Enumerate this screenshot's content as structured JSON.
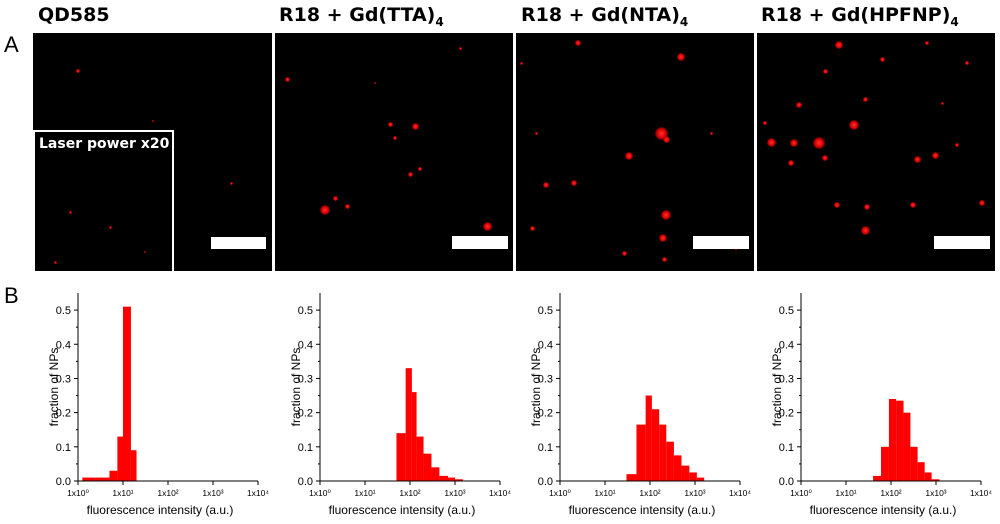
{
  "figure": {
    "panel_a_label": "A",
    "panel_b_label": "B",
    "columns": [
      {
        "title_main": "QD585",
        "title_sub": ""
      },
      {
        "title_main": "R18 + Gd(TTA)",
        "title_sub": "4"
      },
      {
        "title_main": "R18 + Gd(NTA)",
        "title_sub": "4"
      },
      {
        "title_main": "R18 + Gd(HPFNP)",
        "title_sub": "4"
      }
    ],
    "inset_label": "Laser power x20",
    "spot_color": "#ff1a1a",
    "bar_color": "#ff0000"
  },
  "chart_data": [
    {
      "type": "bar",
      "title": "",
      "xlabel": "fluorescence intensity (a.u.)",
      "ylabel": "fraction of NPs",
      "x_scale": "log",
      "xlim": [
        1,
        10000
      ],
      "ylim": [
        0,
        0.55
      ],
      "x_tick_labels": [
        "1x10⁰",
        "1x10¹",
        "1x10²",
        "1x10³",
        "1x10⁴"
      ],
      "y_tick_labels": [
        "0.0",
        "0.1",
        "0.2",
        "0.3",
        "0.4",
        "0.5"
      ],
      "bin_edges": [
        1.25,
        2.5,
        5,
        7.5,
        10,
        15,
        20,
        30
      ],
      "values": [
        0.01,
        0.01,
        0.03,
        0.13,
        0.51,
        0.09,
        0.0
      ]
    },
    {
      "type": "bar",
      "title": "",
      "xlabel": "fluorescence intensity (a.u.)",
      "ylabel": "fraction of NPs",
      "x_scale": "log",
      "xlim": [
        1,
        10000
      ],
      "ylim": [
        0,
        0.55
      ],
      "x_tick_labels": [
        "1x10⁰",
        "1x10¹",
        "1x10²",
        "1x10³",
        "1x10⁴"
      ],
      "y_tick_labels": [
        "0.0",
        "0.1",
        "0.2",
        "0.3",
        "0.4",
        "0.5"
      ],
      "bin_edges": [
        50,
        80,
        110,
        140,
        200,
        300,
        450,
        700,
        1000,
        1500
      ],
      "values": [
        0.14,
        0.33,
        0.26,
        0.13,
        0.08,
        0.04,
        0.015,
        0.01,
        0.005
      ]
    },
    {
      "type": "bar",
      "title": "",
      "xlabel": "fluorescence intensity (a.u.)",
      "ylabel": "fraction of NPs",
      "x_scale": "log",
      "xlim": [
        1,
        10000
      ],
      "ylim": [
        0,
        0.55
      ],
      "x_tick_labels": [
        "1x10⁰",
        "1x10¹",
        "1x10²",
        "1x10³",
        "1x10⁴"
      ],
      "y_tick_labels": [
        "0.0",
        "0.1",
        "0.2",
        "0.3",
        "0.4",
        "0.5"
      ],
      "bin_edges": [
        30,
        50,
        80,
        110,
        160,
        230,
        340,
        500,
        750,
        1100,
        1600
      ],
      "values": [
        0.02,
        0.165,
        0.25,
        0.21,
        0.165,
        0.115,
        0.075,
        0.045,
        0.025,
        0.01
      ]
    },
    {
      "type": "bar",
      "title": "",
      "xlabel": "fluorescence intensity (a.u.)",
      "ylabel": "fraction of NPs",
      "x_scale": "log",
      "xlim": [
        1,
        10000
      ],
      "ylim": [
        0,
        0.55
      ],
      "x_tick_labels": [
        "1x10⁰",
        "1x10¹",
        "1x10²",
        "1x10³",
        "1x10⁴"
      ],
      "y_tick_labels": [
        "0.0",
        "0.1",
        "0.2",
        "0.3",
        "0.4",
        "0.5"
      ],
      "bin_edges": [
        40,
        60,
        90,
        130,
        190,
        270,
        390,
        560,
        800,
        1200
      ],
      "values": [
        0.015,
        0.1,
        0.24,
        0.235,
        0.2,
        0.1,
        0.055,
        0.025,
        0.005
      ]
    }
  ]
}
